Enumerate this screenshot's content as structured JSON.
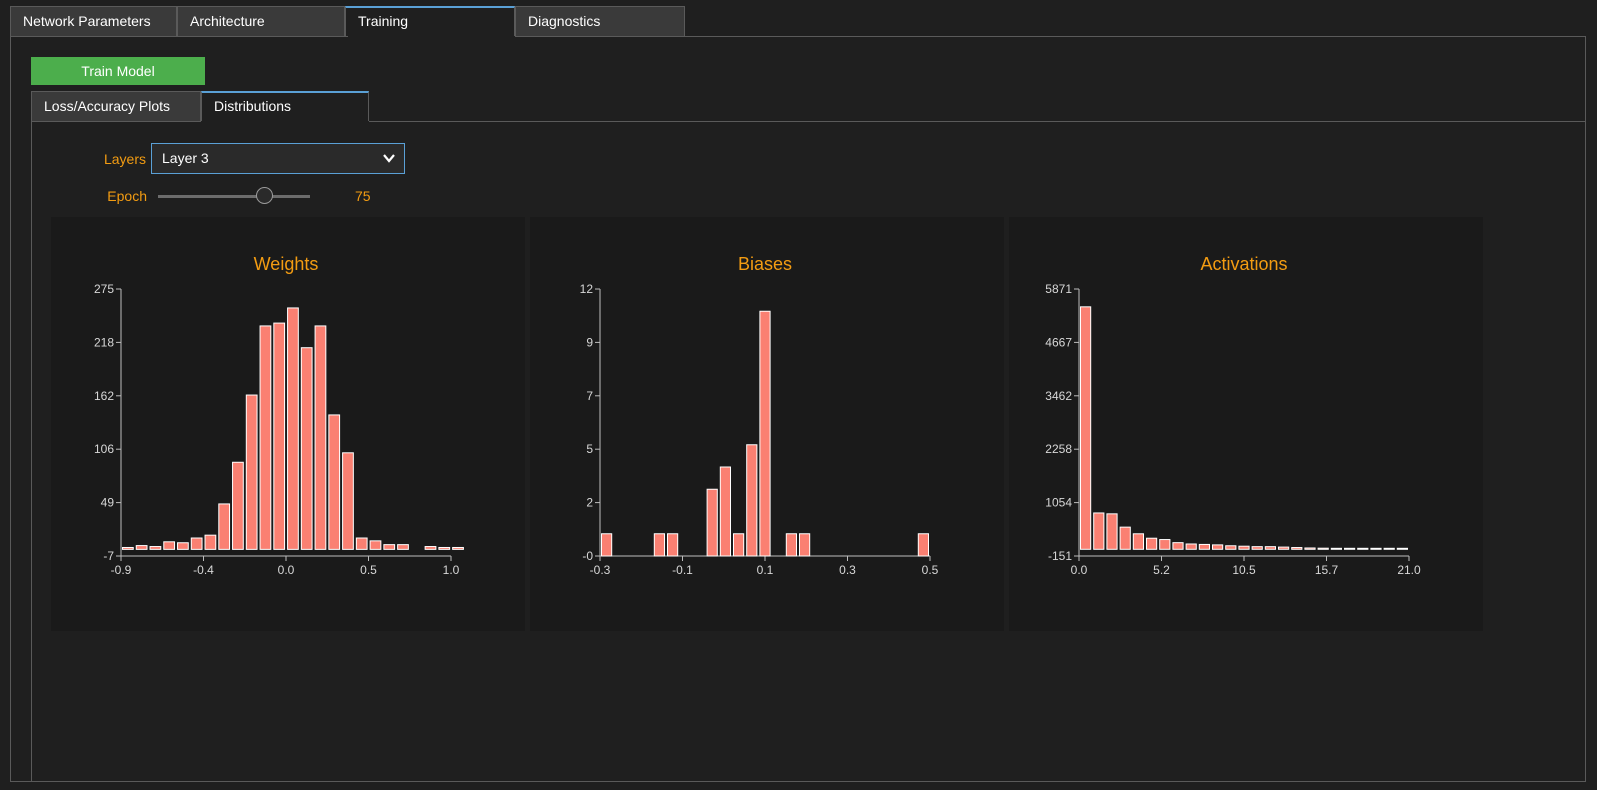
{
  "tabs": [
    {
      "label": "Network Parameters",
      "active": false
    },
    {
      "label": "Architecture",
      "active": false
    },
    {
      "label": "Training",
      "active": true
    },
    {
      "label": "Diagnostics",
      "active": false
    }
  ],
  "training": {
    "train_button_label": "Train Model",
    "sub_tabs": [
      {
        "label": "Loss/Accuracy Plots",
        "active": false
      },
      {
        "label": "Distributions",
        "active": true
      }
    ],
    "layers_label": "Layers",
    "layers_selected": "Layer 3",
    "epoch_label": "Epoch",
    "epoch_value": "75",
    "epoch_slider_fraction": 0.7
  },
  "colors": {
    "accent": "#f39c12",
    "bar_fill": "#fa8072",
    "button_green": "#4cae4c",
    "tab_highlight": "#5aa0d6"
  },
  "icons": {
    "select_chevron": "chevron-down-icon"
  },
  "chart_data": [
    {
      "type": "bar",
      "title": "Weights",
      "ylim": [
        -7,
        275
      ],
      "yticks": [
        "-7",
        "49",
        "106",
        "162",
        "218",
        "275"
      ],
      "xlim": [
        -0.9,
        1.0
      ],
      "xticks": [
        "-0.9",
        "-0.4",
        "0.0",
        "0.5",
        "1.0"
      ],
      "bin_start": -0.9,
      "bin_width": 0.0792,
      "values": [
        2,
        4,
        3,
        8,
        7,
        12,
        15,
        48,
        92,
        163,
        236,
        239,
        255,
        213,
        236,
        142,
        102,
        12,
        9,
        5,
        5,
        0,
        3,
        2,
        2
      ]
    },
    {
      "type": "bar",
      "title": "Biases",
      "ylim": [
        0,
        12
      ],
      "yticks": [
        "-0",
        "2",
        "5",
        "7",
        "9",
        "12"
      ],
      "xlim": [
        -0.3,
        0.5
      ],
      "xticks": [
        "-0.3",
        "-0.1",
        "0.1",
        "0.3",
        "0.5"
      ],
      "bin_start": -0.3,
      "bin_width": 0.032,
      "values": [
        1,
        0,
        0,
        0,
        1,
        1,
        0,
        0,
        3,
        4,
        1,
        5,
        11,
        0,
        1,
        1,
        0,
        0,
        0,
        0,
        0,
        0,
        0,
        0,
        1
      ]
    },
    {
      "type": "bar",
      "title": "Activations",
      "ylim": [
        -151,
        5871
      ],
      "yticks": [
        "-151",
        "1054",
        "2258",
        "3462",
        "4667",
        "5871"
      ],
      "xlim": [
        0.0,
        21.0
      ],
      "xticks": [
        "0.0",
        "5.2",
        "10.5",
        "15.7",
        "21.0"
      ],
      "bin_start": 0.0,
      "bin_width": 0.84,
      "values": [
        5469,
        820,
        800,
        500,
        350,
        250,
        220,
        150,
        120,
        110,
        100,
        80,
        70,
        60,
        60,
        50,
        40,
        30,
        25,
        20,
        15,
        10,
        10,
        5,
        5
      ]
    }
  ]
}
